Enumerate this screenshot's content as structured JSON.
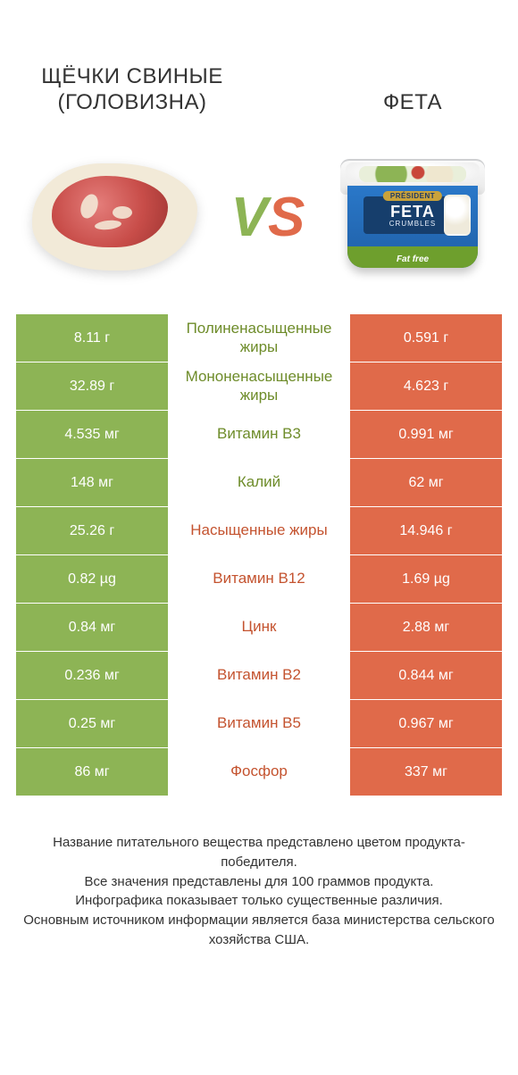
{
  "colors": {
    "green": "#8db455",
    "orange": "#e06a4a",
    "green_text": "#6e8c2a",
    "orange_text": "#c4532f"
  },
  "title_left": "ЩЁЧКИ СВИНЫЕ (ГОЛОВИЗНА)",
  "title_right": "ФЕТА",
  "vs_text": "VS",
  "tub": {
    "brand": "PRÉSIDENT",
    "big": "FETA",
    "sub": "CRUMBLES",
    "fatfree": "Fat free"
  },
  "rows": [
    {
      "left": "8.11 г",
      "mid": "Полиненасыщенные жиры",
      "right": "0.591 г",
      "winner": "left"
    },
    {
      "left": "32.89 г",
      "mid": "Мононенасыщенные жиры",
      "right": "4.623 г",
      "winner": "left"
    },
    {
      "left": "4.535 мг",
      "mid": "Витамин B3",
      "right": "0.991 мг",
      "winner": "left"
    },
    {
      "left": "148 мг",
      "mid": "Калий",
      "right": "62 мг",
      "winner": "left"
    },
    {
      "left": "25.26 г",
      "mid": "Насыщенные жиры",
      "right": "14.946 г",
      "winner": "right"
    },
    {
      "left": "0.82 µg",
      "mid": "Витамин B12",
      "right": "1.69 µg",
      "winner": "right"
    },
    {
      "left": "0.84 мг",
      "mid": "Цинк",
      "right": "2.88 мг",
      "winner": "right"
    },
    {
      "left": "0.236 мг",
      "mid": "Витамин B2",
      "right": "0.844 мг",
      "winner": "right"
    },
    {
      "left": "0.25 мг",
      "mid": "Витамин B5",
      "right": "0.967 мг",
      "winner": "right"
    },
    {
      "left": "86 мг",
      "mid": "Фосфор",
      "right": "337 мг",
      "winner": "right"
    }
  ],
  "footer": [
    "Название питательного вещества представлено цветом продукта-победителя.",
    "Все значения представлены для 100 граммов продукта.",
    "Инфографика показывает только существенные различия.",
    "Основным источником информации является база министерства сельского хозяйства США."
  ]
}
